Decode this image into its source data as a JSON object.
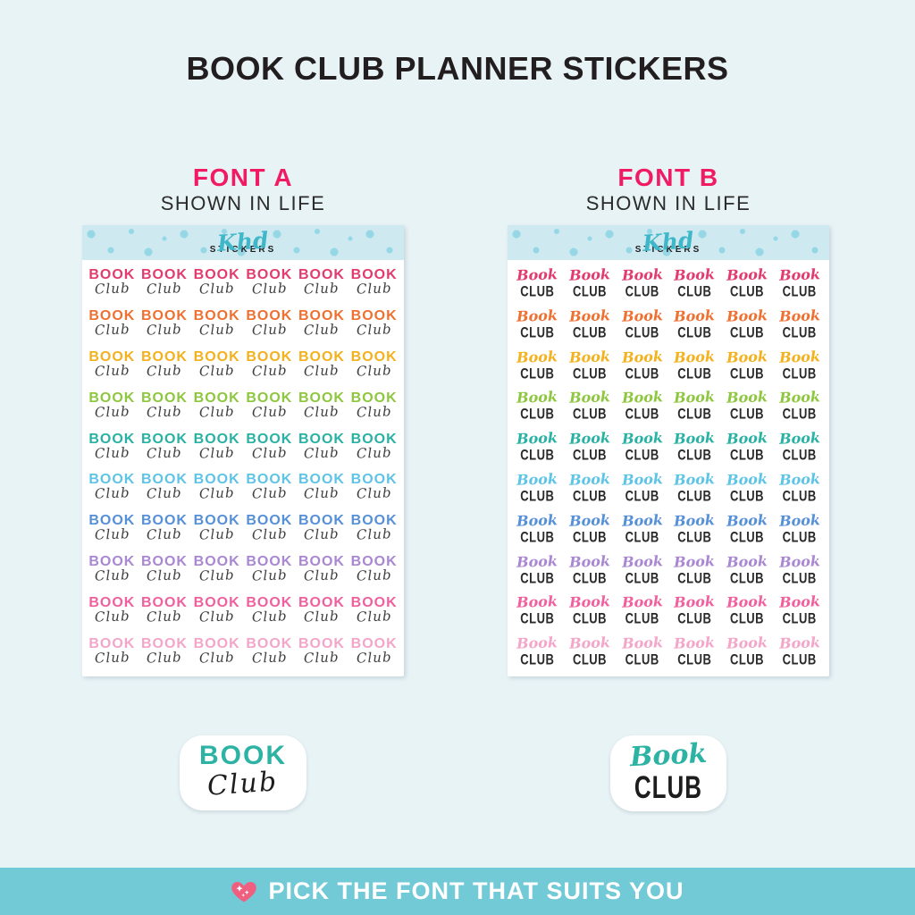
{
  "page": {
    "title": "BOOK CLUB PLANNER STICKERS",
    "background_color": "#e8f3f6"
  },
  "columns": [
    {
      "id": "font-a",
      "font_label": "FONT A",
      "shown_label": "SHOWN IN LIFE",
      "cell_top": "BOOK",
      "cell_bottom": "Club",
      "sample_top": "BOOK",
      "sample_bottom": "Club"
    },
    {
      "id": "font-b",
      "font_label": "FONT B",
      "shown_label": "SHOWN IN LIFE",
      "cell_top": "Book",
      "cell_bottom": "CLUB",
      "sample_top": "Book",
      "sample_bottom": "CLUB"
    }
  ],
  "sheet": {
    "brand_script": "Khd",
    "brand_caps": "STICKERS",
    "rows": 10,
    "columns": 6,
    "row_colors": [
      "#e23b6d",
      "#ee7132",
      "#f3b11d",
      "#8ec73f",
      "#29b2a3",
      "#5ec4e6",
      "#5590d9",
      "#a987d3",
      "#f0609f",
      "#f3a6c9"
    ],
    "script_text_color": "#3e3e3e",
    "caps_text_color": "#2a2a2a",
    "header_band_color": "#cfe9f1",
    "dot_color": "#96d7e6",
    "brand_script_color": "#3eb7c9"
  },
  "accent": {
    "font_label_color": "#f01b62",
    "sample_teal": "#2cb3a4"
  },
  "footer": {
    "icon": "sparkling-heart-icon",
    "icon_color": "#ef5f7f",
    "text": "PICK THE FONT THAT SUITS YOU",
    "bar_color": "#73cad7",
    "text_color": "#ffffff"
  }
}
